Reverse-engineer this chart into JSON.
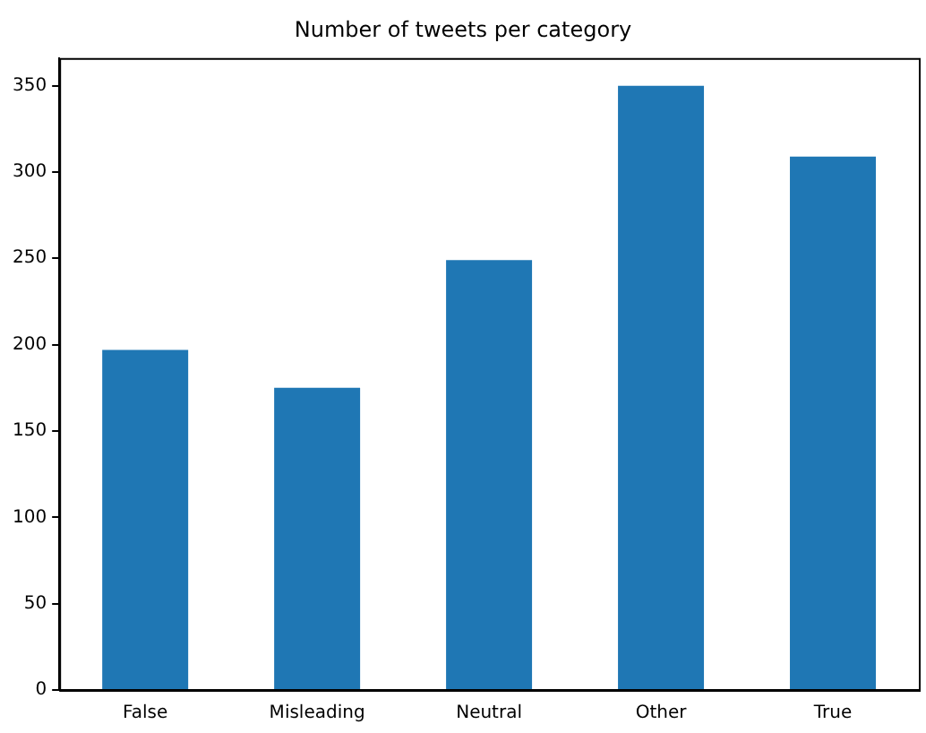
{
  "chart_data": {
    "type": "bar",
    "title": "Number of tweets per category",
    "categories": [
      "False",
      "Misleading",
      "Neutral",
      "Other",
      "True"
    ],
    "values": [
      197,
      175,
      249,
      350,
      309
    ],
    "color": "#1f77b4",
    "ylim": [
      0,
      366
    ],
    "yticks": [
      0,
      50,
      100,
      150,
      200,
      250,
      300,
      350
    ],
    "grid": false,
    "legend": false
  }
}
